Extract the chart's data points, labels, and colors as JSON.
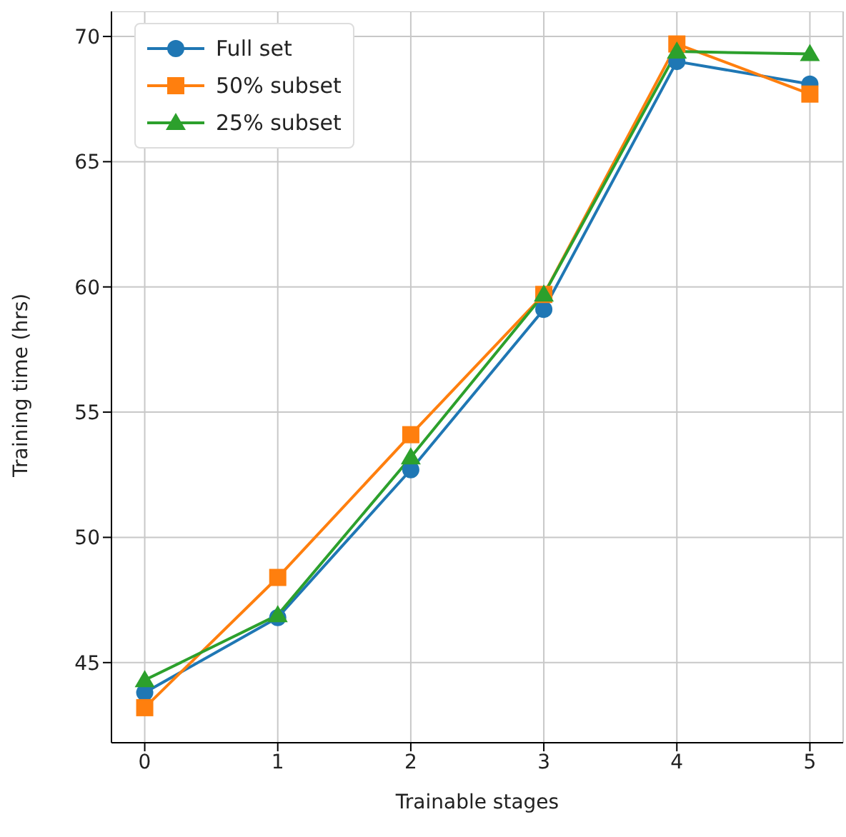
{
  "chart_data": {
    "type": "line",
    "xlabel": "Trainable stages",
    "ylabel": "Training time (hrs)",
    "x": [
      0,
      1,
      2,
      3,
      4,
      5
    ],
    "series": [
      {
        "name": "Full set",
        "color": "#1f77b4",
        "marker": "circle",
        "values": [
          43.8,
          46.8,
          52.7,
          59.1,
          69.0,
          68.1
        ]
      },
      {
        "name": "50% subset",
        "color": "#ff7f0e",
        "marker": "square",
        "values": [
          43.2,
          48.4,
          54.1,
          59.7,
          69.7,
          67.7
        ]
      },
      {
        "name": "25% subset",
        "color": "#2ca02c",
        "marker": "triangle",
        "values": [
          44.3,
          46.9,
          53.2,
          59.7,
          69.4,
          69.3
        ]
      }
    ],
    "xlim": [
      -0.25,
      5.25
    ],
    "xticks": [
      0,
      1,
      2,
      3,
      4,
      5
    ],
    "ylim": [
      41.8,
      71
    ],
    "yticks": [
      45,
      50,
      55,
      60,
      65,
      70
    ],
    "grid": true,
    "legend": "top left",
    "line_style": "solid"
  }
}
